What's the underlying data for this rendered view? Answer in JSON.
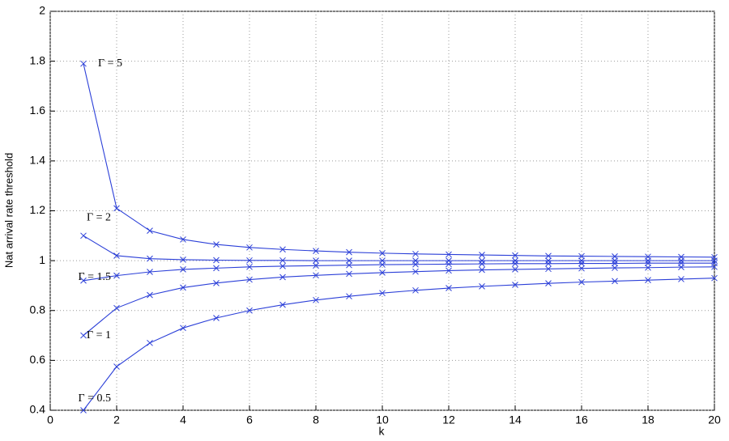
{
  "chart_data": {
    "type": "line",
    "x_label": "k",
    "y_label": "Nat arrival rate threshold",
    "x": [
      1,
      2,
      3,
      4,
      5,
      6,
      7,
      8,
      9,
      10,
      11,
      12,
      13,
      14,
      15,
      16,
      17,
      18,
      19,
      20
    ],
    "series": [
      {
        "name": "Γ = 5",
        "color": "#2b3fd8",
        "values": [
          1.79,
          1.21,
          1.12,
          1.085,
          1.065,
          1.053,
          1.045,
          1.039,
          1.034,
          1.03,
          1.027,
          1.025,
          1.023,
          1.021,
          1.019,
          1.018,
          1.017,
          1.016,
          1.015,
          1.014
        ]
      },
      {
        "name": "Γ = 2",
        "color": "#2b3fd8",
        "values": [
          1.1,
          1.02,
          1.008,
          1.004,
          1.002,
          1.001,
          1.001,
          1.0,
          1.0,
          1.0,
          1.0,
          1.0,
          1.0,
          1.0,
          1.0,
          1.0,
          1.0,
          1.0,
          1.0,
          1.0
        ]
      },
      {
        "name": "Γ = 1.5",
        "color": "#2b3fd8",
        "values": [
          0.92,
          0.94,
          0.955,
          0.965,
          0.97,
          0.975,
          0.978,
          0.98,
          0.982,
          0.984,
          0.985,
          0.986,
          0.987,
          0.988,
          0.988,
          0.989,
          0.989,
          0.99,
          0.99,
          0.99
        ]
      },
      {
        "name": "Γ = 1",
        "color": "#2b3fd8",
        "values": [
          0.7,
          0.81,
          0.862,
          0.892,
          0.91,
          0.924,
          0.934,
          0.941,
          0.947,
          0.952,
          0.956,
          0.96,
          0.963,
          0.965,
          0.967,
          0.969,
          0.971,
          0.972,
          0.974,
          0.975
        ]
      },
      {
        "name": "Γ = 0.5",
        "color": "#2b3fd8",
        "values": [
          0.4,
          0.575,
          0.67,
          0.73,
          0.77,
          0.8,
          0.823,
          0.842,
          0.857,
          0.87,
          0.881,
          0.89,
          0.897,
          0.903,
          0.909,
          0.914,
          0.918,
          0.922,
          0.926,
          0.93
        ]
      }
    ],
    "xlim": [
      0,
      20
    ],
    "xticks": [
      0,
      2,
      4,
      6,
      8,
      10,
      12,
      14,
      16,
      18,
      20
    ],
    "ylim": [
      0.4,
      2
    ],
    "yticks": [
      0.4,
      0.6,
      0.8,
      1,
      1.2,
      1.4,
      1.6,
      1.8,
      2
    ],
    "grid": true
  }
}
